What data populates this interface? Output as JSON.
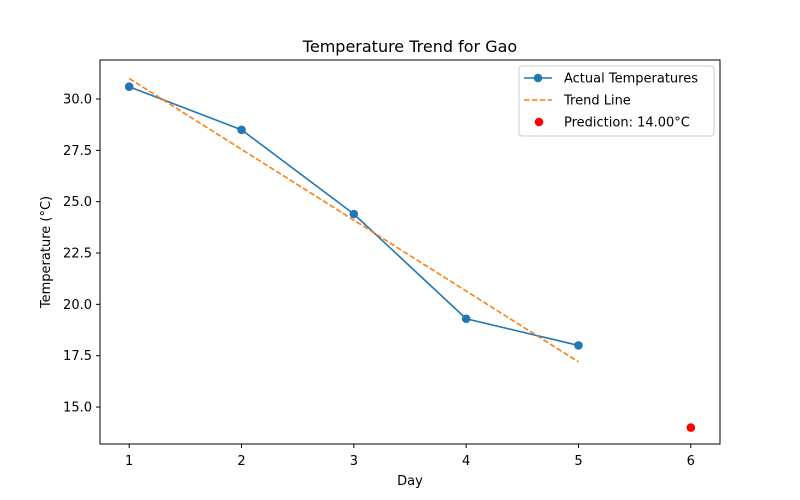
{
  "chart_data": {
    "type": "line",
    "title": "Temperature Trend for Gao",
    "xlabel": "Day",
    "ylabel": "Temperature (°C)",
    "xlim": [
      0.74,
      6.26
    ],
    "ylim": [
      13.2,
      31.9
    ],
    "x_ticks": [
      1,
      2,
      3,
      4,
      5,
      6
    ],
    "y_ticks": [
      15.0,
      17.5,
      20.0,
      22.5,
      25.0,
      27.5,
      30.0
    ],
    "y_tick_labels": [
      "15.0",
      "17.5",
      "20.0",
      "22.5",
      "25.0",
      "27.5",
      "30.0"
    ],
    "legend_position": "top-right",
    "series": [
      {
        "name": "Actual Temperatures",
        "kind": "line-markers",
        "color": "#1f77b4",
        "x": [
          1,
          2,
          3,
          4,
          5
        ],
        "y": [
          30.6,
          28.5,
          24.4,
          19.3,
          18.0
        ]
      },
      {
        "name": "Trend Line",
        "kind": "dashed-line",
        "color": "#ff7f0e",
        "x": [
          1,
          5
        ],
        "y": [
          31.0,
          17.2
        ]
      },
      {
        "name": "Prediction: 14.00°C",
        "kind": "scatter",
        "color": "#ff0000",
        "x": [
          6
        ],
        "y": [
          14.0
        ]
      }
    ]
  }
}
